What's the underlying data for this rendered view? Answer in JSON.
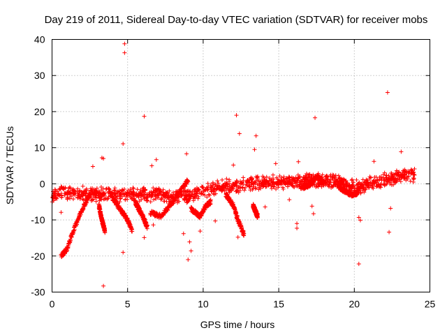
{
  "chart_data": {
    "type": "scatter",
    "title": "Day 219 of 2011, Sidereal Day-to-day VTEC variation (SDTVAR) for receiver mobs",
    "xlabel": "GPS time / hours",
    "ylabel": "SDTVAR / TECUs",
    "xlim": [
      0,
      25
    ],
    "ylim": [
      -30,
      40
    ],
    "xticks": [
      0,
      5,
      10,
      15,
      20,
      25
    ],
    "yticks": [
      -30,
      -20,
      -10,
      0,
      10,
      20,
      30,
      40
    ],
    "grid": true,
    "marker": "+",
    "color": "#ff0000",
    "series": [
      {
        "name": "SDTVAR",
        "bands": [
          {
            "x": [
              0,
              0.5,
              1,
              2,
              3,
              4,
              5,
              6,
              7,
              8,
              9,
              10,
              11,
              12,
              13,
              14,
              15,
              16,
              17,
              18,
              19,
              20,
              21,
              22,
              23,
              24
            ],
            "y": [
              -3,
              -2.5,
              -2.5,
              -2.5,
              -3,
              -3,
              -3,
              -3,
              -3,
              -3.5,
              -3.5,
              -2,
              -1,
              -0.5,
              0,
              0.3,
              0.5,
              0.5,
              0.8,
              1,
              0.5,
              -1,
              0,
              1,
              2,
              2.5
            ],
            "spread": 2.2
          }
        ],
        "branches": [
          {
            "x": [
              0.6,
              1.0,
              1.5,
              2.0,
              2.5
            ],
            "y": [
              -20,
              -18,
              -12,
              -7,
              -3
            ]
          },
          {
            "x": [
              3.1,
              3.3,
              3.5
            ],
            "y": [
              -6,
              -10,
              -13
            ]
          },
          {
            "x": [
              4.0,
              4.5,
              5.0,
              5.3
            ],
            "y": [
              -4,
              -7,
              -10,
              -13
            ]
          },
          {
            "x": [
              5.5,
              6.0,
              6.3
            ],
            "y": [
              -5,
              -9,
              -12
            ]
          },
          {
            "x": [
              6.5,
              7.2,
              8.0,
              9.0
            ],
            "y": [
              -8,
              -9,
              -5,
              1
            ]
          },
          {
            "x": [
              9.2,
              9.8,
              10.2,
              10.5
            ],
            "y": [
              -7,
              -9,
              -6,
              -5
            ]
          },
          {
            "x": [
              11.5,
              12.0,
              12.3,
              12.7
            ],
            "y": [
              -3,
              -6,
              -10,
              -14
            ]
          },
          {
            "x": [
              13.3,
              13.6
            ],
            "y": [
              -6,
              -9
            ]
          },
          {
            "x": [
              16.5,
              17.0,
              17.5,
              18.0
            ],
            "y": [
              -1,
              -0.5,
              2,
              0
            ]
          },
          {
            "x": [
              19.0,
              19.8,
              20.2,
              20.5
            ],
            "y": [
              -1,
              -3,
              -2.5,
              0
            ]
          }
        ],
        "outliers": [
          {
            "x": 4.8,
            "y": 38.8
          },
          {
            "x": 4.8,
            "y": 36.3
          },
          {
            "x": 6.1,
            "y": 18.7
          },
          {
            "x": 12.2,
            "y": 19.0
          },
          {
            "x": 17.4,
            "y": 18.3
          },
          {
            "x": 22.2,
            "y": 25.3
          },
          {
            "x": 4.7,
            "y": 11.1
          },
          {
            "x": 12.4,
            "y": 13.9
          },
          {
            "x": 13.5,
            "y": 13.3
          },
          {
            "x": 13.4,
            "y": 9.5
          },
          {
            "x": 8.9,
            "y": 8.3
          },
          {
            "x": 23.1,
            "y": 8.9
          },
          {
            "x": 3.3,
            "y": 7.2
          },
          {
            "x": 3.4,
            "y": 7.0
          },
          {
            "x": 6.9,
            "y": 6.7
          },
          {
            "x": 6.6,
            "y": 5.0
          },
          {
            "x": 2.7,
            "y": 4.8
          },
          {
            "x": 14.8,
            "y": 5.6
          },
          {
            "x": 21.3,
            "y": 6.2
          },
          {
            "x": 16.3,
            "y": 6.1
          },
          {
            "x": 12.0,
            "y": 5.2
          },
          {
            "x": 3.4,
            "y": -28.3
          },
          {
            "x": 20.3,
            "y": -22.2
          },
          {
            "x": 9.0,
            "y": -21.0
          },
          {
            "x": 4.7,
            "y": -19.0
          },
          {
            "x": 9.2,
            "y": -18.6
          },
          {
            "x": 9.1,
            "y": -16.1
          },
          {
            "x": 12.3,
            "y": -14.8
          },
          {
            "x": 6.1,
            "y": -14.9
          },
          {
            "x": 22.3,
            "y": -13.4
          },
          {
            "x": 9.8,
            "y": -13.1
          },
          {
            "x": 16.2,
            "y": -12.3
          },
          {
            "x": 16.2,
            "y": -11.0
          },
          {
            "x": 20.4,
            "y": -10.1
          },
          {
            "x": 20.3,
            "y": -9.3
          },
          {
            "x": 15.7,
            "y": -4.4
          },
          {
            "x": 17.2,
            "y": -6.2
          },
          {
            "x": 14.1,
            "y": -6.4
          },
          {
            "x": 8.7,
            "y": -13.8
          },
          {
            "x": 6.7,
            "y": -11.4
          },
          {
            "x": 0.6,
            "y": -7.9
          },
          {
            "x": 10.8,
            "y": -10.3
          },
          {
            "x": 22.4,
            "y": -6.8
          },
          {
            "x": 17.3,
            "y": -8.3
          }
        ]
      }
    ]
  }
}
